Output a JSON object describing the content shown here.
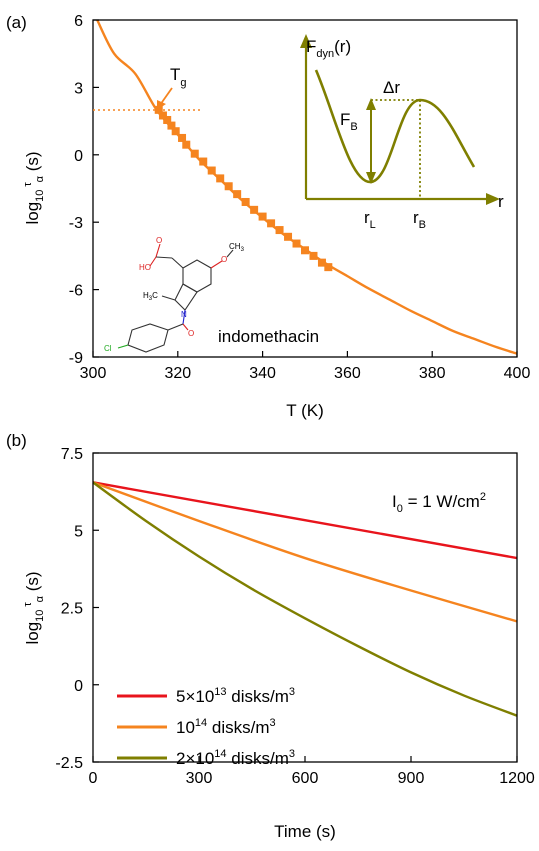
{
  "chart_data": [
    {
      "type": "line",
      "panel_label": "(a)",
      "xlabel": "T (K)",
      "ylabel": {
        "base": "log",
        "sub": "10",
        "sup": "τ",
        "sub2": "α",
        "unit": " (s)"
      },
      "xlim": [
        300,
        400
      ],
      "ylim": [
        -9,
        6
      ],
      "xticks": [
        "300",
        "320",
        "340",
        "360",
        "380",
        "400"
      ],
      "yticks": [
        "6",
        "3",
        "0",
        "-3",
        "-6",
        "-9"
      ],
      "series": [
        {
          "kind": "line",
          "color": "#F5841F",
          "x": [
            301,
            305,
            310,
            315,
            320,
            325,
            330,
            335,
            340,
            345,
            350,
            355,
            360,
            365,
            370,
            375,
            380,
            385,
            390,
            395,
            400
          ],
          "y": [
            6.0,
            4.5,
            3.6,
            2.0,
            0.9,
            -0.2,
            -1.1,
            -2.0,
            -2.8,
            -3.55,
            -4.2,
            -4.85,
            -5.4,
            -5.95,
            -6.45,
            -6.95,
            -7.4,
            -7.85,
            -8.2,
            -8.55,
            -8.85
          ]
        },
        {
          "kind": "scatter",
          "color": "#F5841F",
          "x": [
            315.5,
            316.5,
            317.5,
            318.5,
            319.5,
            321,
            322,
            324,
            326,
            328,
            330,
            332,
            334,
            336,
            338,
            340,
            342,
            344,
            346,
            348,
            350,
            352,
            354,
            355.5
          ],
          "y": [
            2.0,
            1.75,
            1.55,
            1.3,
            1.05,
            0.75,
            0.45,
            0.05,
            -0.3,
            -0.7,
            -1.05,
            -1.4,
            -1.75,
            -2.1,
            -2.45,
            -2.75,
            -3.05,
            -3.35,
            -3.65,
            -3.95,
            -4.25,
            -4.5,
            -4.8,
            -5.0
          ]
        }
      ],
      "annotations": {
        "tg_label": "T",
        "tg_sub": "g",
        "molecule_label": "indomethacin",
        "molecule_atoms": {
          "o": "O",
          "ho": "HO",
          "ch3_top": "CH",
          "ch3_sub": "3",
          "h3c": "H",
          "h3c_sub": "3",
          "h3c_c": "C",
          "n": "N",
          "cl": "Cl"
        }
      },
      "inset": {
        "color": "#7F7F00",
        "ylabel": "F",
        "ylabel_sub": "dyn",
        "ylabel_arg": "(r)",
        "xlabel": "r",
        "fb": "F",
        "fb_sub": "B",
        "dr": "Δr",
        "rl": "r",
        "rl_sub": "L",
        "rb": "r",
        "rb_sub": "B"
      }
    },
    {
      "type": "line",
      "panel_label": "(b)",
      "xlabel": "Time (s)",
      "ylabel": {
        "base": "log",
        "sub": "10",
        "sup": "τ",
        "sub2": "α",
        "unit": " (s)"
      },
      "xlim": [
        0,
        1200
      ],
      "ylim": [
        -2.5,
        7.5
      ],
      "xticks": [
        "0",
        "300",
        "600",
        "900",
        "1200"
      ],
      "yticks": [
        "7.5",
        "5",
        "2.5",
        "0",
        "-2.5"
      ],
      "annotation": {
        "text": "I",
        "sub": "0",
        "rest": " = 1 W/cm",
        "sup": "2"
      },
      "series": [
        {
          "name": "5×10^13 disks/m^3",
          "color": "#E8141C",
          "x": [
            0,
            1200
          ],
          "y": [
            6.55,
            4.1
          ]
        },
        {
          "name": "10^14 disks/m^3",
          "color": "#F5841F",
          "x": [
            0,
            300,
            600,
            900,
            1200
          ],
          "y": [
            6.55,
            5.3,
            4.1,
            3.05,
            2.05
          ]
        },
        {
          "name": "2×10^14 disks/m^3",
          "color": "#7F7F00",
          "x": [
            0,
            150,
            300,
            450,
            600,
            750,
            900,
            1050,
            1200
          ],
          "y": [
            6.55,
            5.3,
            4.15,
            3.1,
            2.15,
            1.25,
            0.4,
            -0.35,
            -1.0
          ]
        }
      ],
      "legend": {
        "position": "bottom-left",
        "entries": [
          {
            "pre": "5×10",
            "sup": "13",
            "post": " disks/m",
            "sup2": "3"
          },
          {
            "pre": "10",
            "sup": "14",
            "post": " disks/m",
            "sup2": "3"
          },
          {
            "pre": "2×10",
            "sup": "14",
            "post": " disks/m",
            "sup2": "3"
          }
        ]
      }
    }
  ]
}
